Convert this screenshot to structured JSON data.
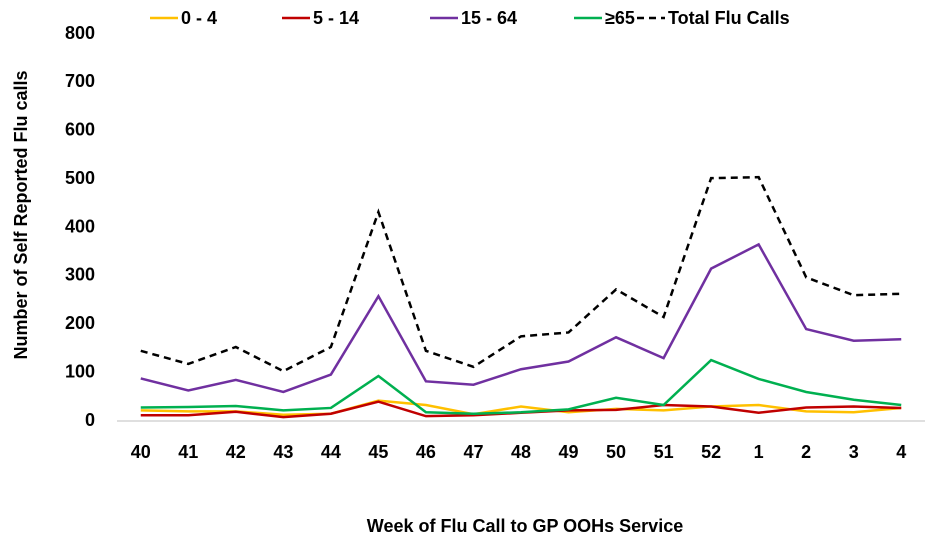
{
  "chart_data": {
    "type": "line",
    "x_label": "Week of Flu Call to GP OOHs Service",
    "y_label": "Number of Self Reported Flu calls",
    "categories": [
      "40",
      "41",
      "42",
      "43",
      "44",
      "45",
      "46",
      "47",
      "48",
      "49",
      "50",
      "51",
      "52",
      "1",
      "2",
      "3",
      "4"
    ],
    "ylim": [
      0,
      800
    ],
    "yticks": [
      0,
      100,
      200,
      300,
      400,
      500,
      600,
      700,
      800
    ],
    "legend": "top",
    "series": [
      {
        "name": "0 - 4",
        "color": "#ffc000",
        "values": [
          22,
          20,
          20,
          13,
          15,
          42,
          33,
          14,
          30,
          18,
          25,
          22,
          30,
          33,
          20,
          18,
          27
        ]
      },
      {
        "name": "5 - 14",
        "color": "#c00000",
        "values": [
          12,
          12,
          19,
          8,
          15,
          40,
          10,
          12,
          17,
          22,
          23,
          33,
          30,
          17,
          28,
          30,
          27
        ]
      },
      {
        "name": "15 - 64",
        "color": "#7030a0",
        "values": [
          88,
          63,
          85,
          60,
          96,
          258,
          82,
          75,
          107,
          123,
          173,
          130,
          315,
          365,
          190,
          166,
          169
        ]
      },
      {
        "name": "≥65",
        "color": "#00b050",
        "values": [
          28,
          29,
          31,
          22,
          27,
          93,
          18,
          15,
          18,
          24,
          48,
          33,
          126,
          87,
          60,
          44,
          33
        ]
      },
      {
        "name": "Total Flu Calls",
        "color": "#000000",
        "dashed": true,
        "values": [
          145,
          118,
          153,
          103,
          153,
          432,
          145,
          112,
          175,
          183,
          272,
          215,
          502,
          504,
          297,
          260,
          263
        ]
      }
    ]
  }
}
